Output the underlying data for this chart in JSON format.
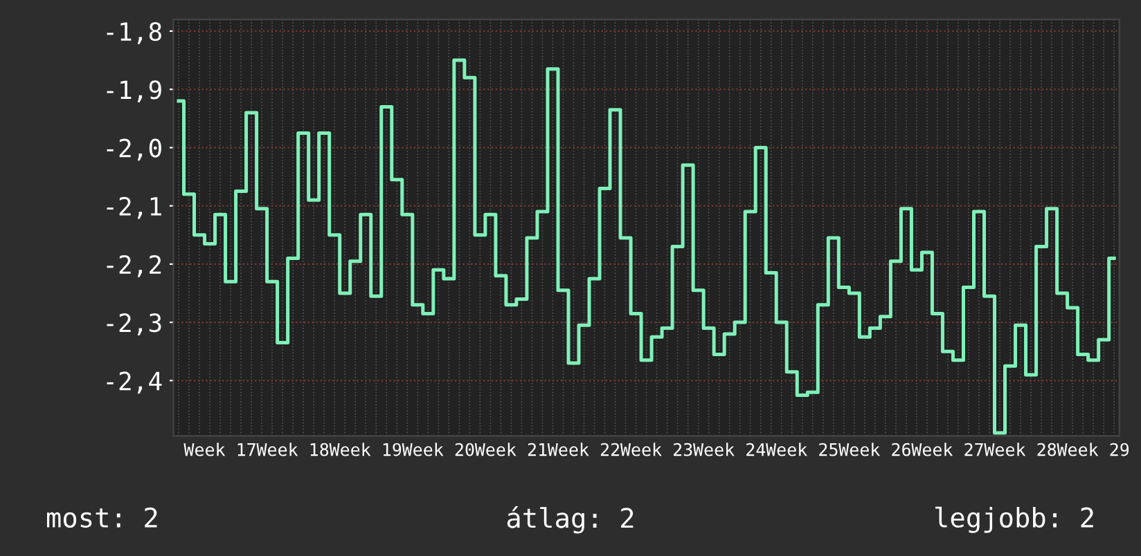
{
  "chart_data": {
    "type": "step",
    "categories": [
      null,
      null,
      null,
      null,
      "Week 17",
      null,
      null,
      null,
      null,
      null,
      null,
      "Week 18",
      null,
      null,
      null,
      null,
      null,
      null,
      "Week 19",
      null,
      null,
      null,
      null,
      null,
      null,
      "Week 20",
      null,
      null,
      null,
      null,
      null,
      null,
      "Week 21",
      null,
      null,
      null,
      null,
      null,
      null,
      "Week 22",
      null,
      null,
      null,
      null,
      null,
      null,
      "Week 23",
      null,
      null,
      null,
      null,
      null,
      null,
      "Week 24",
      null,
      null,
      null,
      null,
      null,
      null,
      "Week 25",
      null,
      null,
      null,
      null,
      null,
      null,
      "Week 26",
      null,
      null,
      null,
      null,
      null,
      null,
      "Week 27",
      null,
      null,
      null,
      null,
      null,
      null,
      "Week 28",
      null,
      null,
      null,
      null,
      null,
      null,
      "Week 29",
      null,
      null
    ],
    "series": [
      {
        "color": "#7ff0b8",
        "values": [
          -1.92,
          -2.08,
          -2.15,
          -2.165,
          -2.115,
          -2.23,
          -2.075,
          -1.94,
          -2.105,
          -2.23,
          -2.335,
          -2.19,
          -1.975,
          -2.09,
          -1.975,
          -2.15,
          -2.25,
          -2.195,
          -2.115,
          -2.255,
          -1.93,
          -2.055,
          -2.115,
          -2.27,
          -2.285,
          -2.21,
          -2.225,
          -1.85,
          -1.88,
          -2.15,
          -2.115,
          -2.22,
          -2.27,
          -2.26,
          -2.155,
          -2.11,
          -1.865,
          -2.245,
          -2.37,
          -2.305,
          -2.225,
          -2.07,
          -1.935,
          -2.155,
          -2.285,
          -2.365,
          -2.325,
          -2.31,
          -2.17,
          -2.03,
          -2.245,
          -2.31,
          -2.355,
          -2.32,
          -2.3,
          -2.11,
          -2.0,
          -2.215,
          -2.3,
          -2.385,
          -2.425,
          -2.42,
          -2.27,
          -2.155,
          -2.24,
          -2.25,
          -2.325,
          -2.31,
          -2.29,
          -2.195,
          -2.105,
          -2.21,
          -2.18,
          -2.285,
          -2.35,
          -2.365,
          -2.24,
          -2.11,
          -2.255,
          -2.49,
          -2.375,
          -2.305,
          -2.39,
          -2.17,
          -2.105,
          -2.25,
          -2.275,
          -2.355,
          -2.365,
          -2.33,
          -2.19
        ]
      }
    ],
    "ylim": [
      -2.495,
      -1.78
    ],
    "yticks": [
      {
        "value": -2.4,
        "label": "-2,4"
      },
      {
        "value": -2.3,
        "label": "-2,3"
      },
      {
        "value": -2.2,
        "label": "-2,2"
      },
      {
        "value": -2.1,
        "label": "-2,1"
      },
      {
        "value": -2.0,
        "label": "-2,0"
      },
      {
        "value": -1.9,
        "label": "-1,9"
      },
      {
        "value": -1.8,
        "label": "-1,8"
      }
    ],
    "grid": true,
    "annotations": [
      "most: 2",
      "átlag: 2",
      "legjobb: 2"
    ]
  }
}
